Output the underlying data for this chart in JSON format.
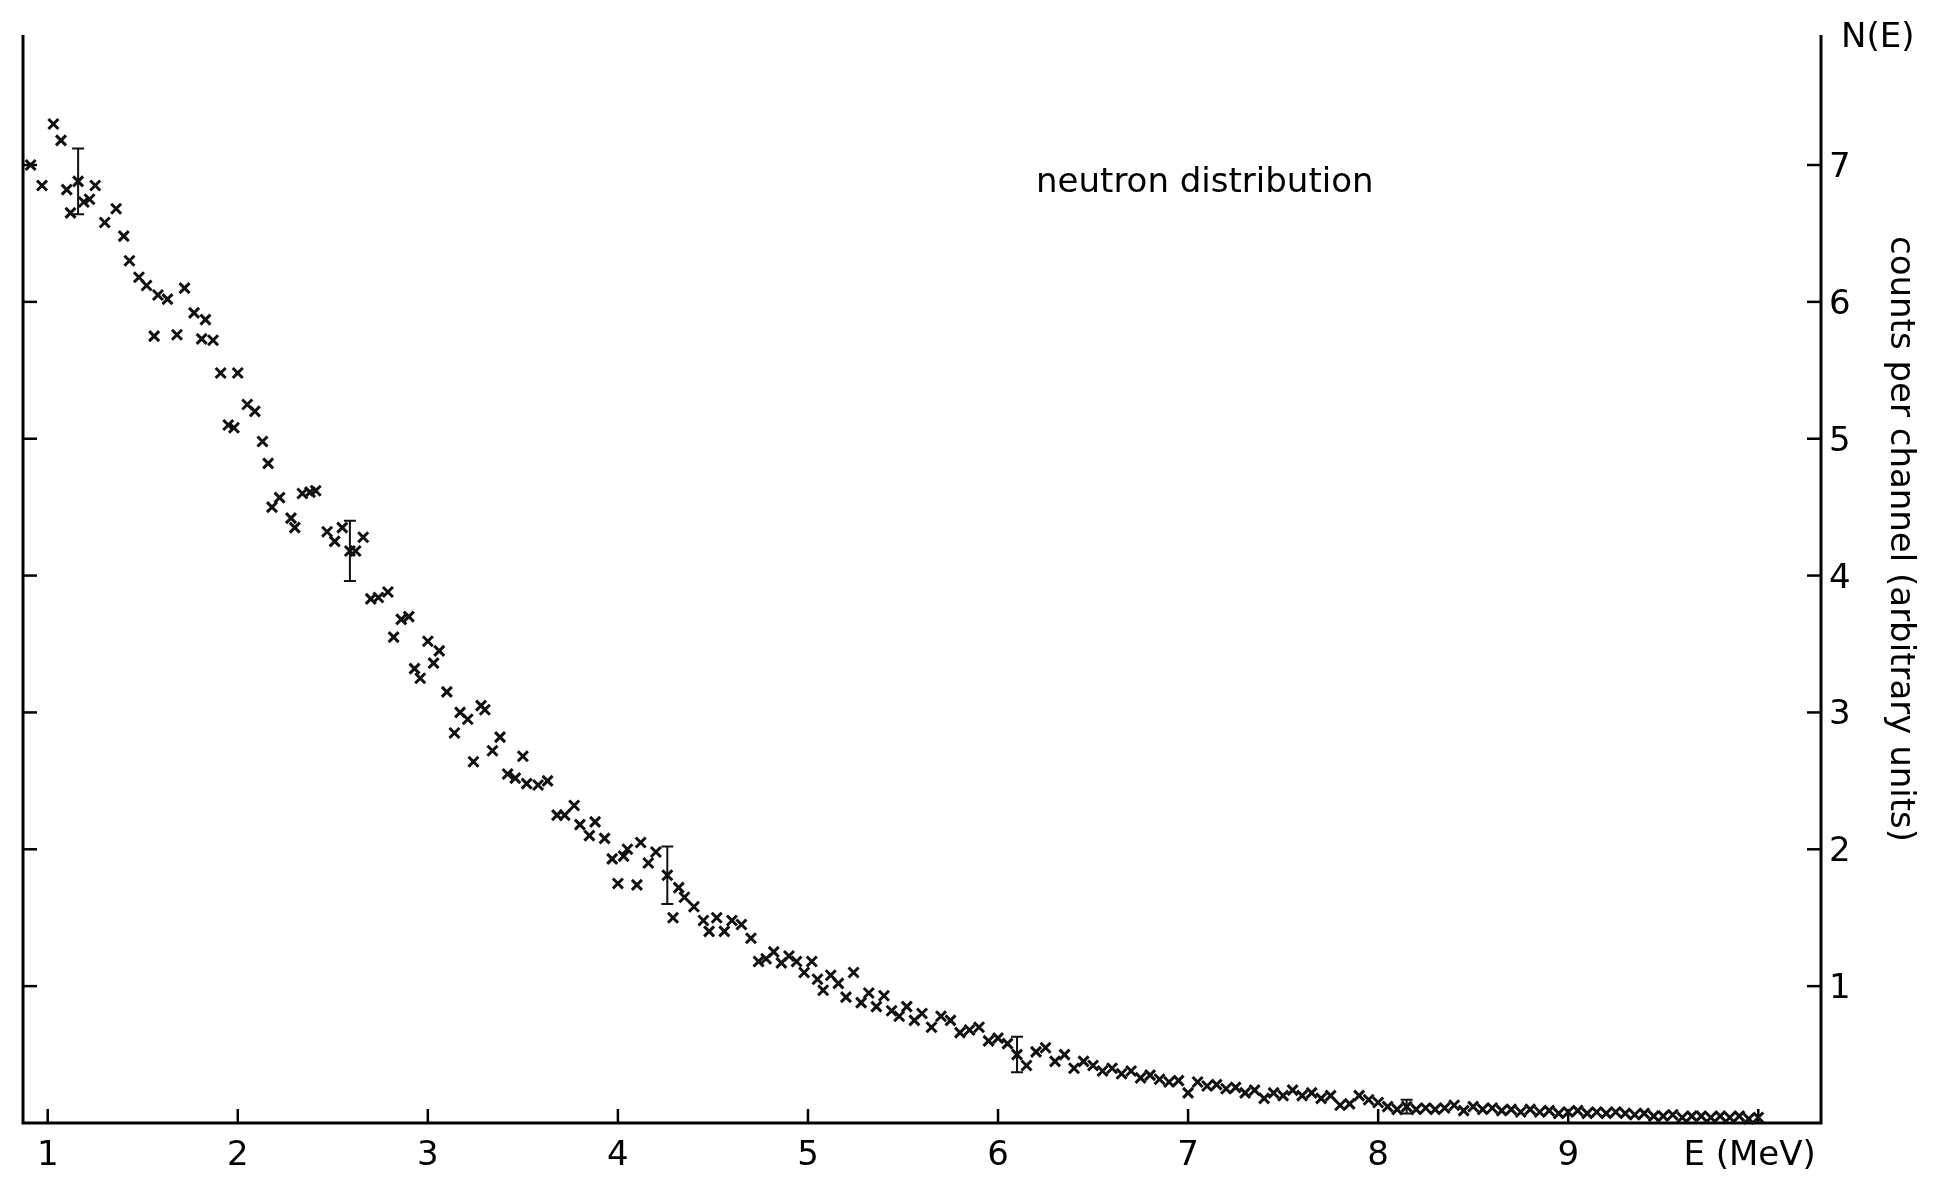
{
  "chart_data": {
    "type": "scatter",
    "xlabel": "E (MeV)",
    "ylabel": "counts per channel (arbitrary units)",
    "annotations": [
      "neutron distribution",
      "N(E)"
    ],
    "xlim": [
      0.87,
      10.33
    ],
    "ylim": [
      0,
      7.95
    ],
    "xticks": [
      1,
      2,
      3,
      4,
      5,
      6,
      7,
      8,
      9,
      {
        "value": 10,
        "label": null
      }
    ],
    "yticks": [
      1,
      2,
      3,
      4,
      5,
      6,
      7
    ],
    "marker": "cross",
    "series": [
      {
        "color": "#111111",
        "x": [
          0.91,
          0.97,
          1.03,
          1.07,
          1.1,
          1.12,
          1.19,
          1.22,
          1.25,
          1.3,
          1.36,
          1.4,
          1.43,
          1.48,
          1.52,
          1.56,
          1.58,
          1.63,
          1.68,
          1.72,
          1.77,
          1.81,
          1.83,
          1.87,
          1.91,
          1.95,
          1.98,
          2.0,
          2.05,
          2.09,
          2.13,
          2.16,
          2.18,
          2.22,
          2.28,
          2.3,
          2.34,
          2.38,
          2.41,
          2.47,
          2.51,
          2.55,
          2.62,
          2.66,
          2.7,
          2.74,
          2.79,
          2.82,
          2.86,
          2.9,
          2.93,
          2.96,
          3.0,
          3.03,
          3.06,
          3.1,
          3.14,
          3.17,
          3.21,
          3.24,
          3.28,
          3.3,
          3.34,
          3.38,
          3.42,
          3.46,
          3.5,
          3.52,
          3.58,
          3.63,
          3.68,
          3.72,
          3.77,
          3.8,
          3.85,
          3.88,
          3.93,
          3.97,
          4.0,
          4.03,
          4.05,
          4.1,
          4.12,
          4.16,
          4.2,
          4.29,
          4.32,
          4.35,
          4.4,
          4.45,
          4.48,
          4.52,
          4.56,
          4.6,
          4.65,
          4.7,
          4.74,
          4.78,
          4.82,
          4.86,
          4.9,
          4.94,
          4.98,
          5.02,
          5.05,
          5.08,
          5.12,
          5.16,
          5.2,
          5.24,
          5.28,
          5.32,
          5.36,
          5.4,
          5.44,
          5.48,
          5.52,
          5.56,
          5.6,
          5.65,
          5.7,
          5.75,
          5.8,
          5.85,
          5.9,
          5.95,
          6.0,
          6.05,
          6.15,
          6.2,
          6.25,
          6.3,
          6.35,
          6.4,
          6.45,
          6.5,
          6.55,
          6.6,
          6.65,
          6.7,
          6.75,
          6.8,
          6.85,
          6.9,
          6.95,
          7.0,
          7.05,
          7.1,
          7.15,
          7.2,
          7.25,
          7.3,
          7.35,
          7.4,
          7.45,
          7.5,
          7.55,
          7.6,
          7.65,
          7.7,
          7.75,
          7.8,
          7.85,
          7.9,
          7.95,
          8.0,
          8.05,
          8.1,
          8.2,
          8.25,
          8.3,
          8.35,
          8.4,
          8.45,
          8.5,
          8.55,
          8.6,
          8.65,
          8.7,
          8.75,
          8.8,
          8.85,
          8.9,
          8.95,
          9.0,
          9.05,
          9.1,
          9.15,
          9.2,
          9.25,
          9.3,
          9.35,
          9.4,
          9.45,
          9.5,
          9.55,
          9.6,
          9.65,
          9.7,
          9.75,
          9.8,
          9.85,
          9.9,
          9.95,
          10.0
        ],
        "values": [
          7.0,
          6.85,
          7.3,
          7.18,
          6.82,
          6.65,
          6.73,
          6.75,
          6.85,
          6.58,
          6.68,
          6.48,
          6.3,
          6.18,
          6.12,
          5.75,
          6.05,
          6.02,
          5.76,
          6.1,
          5.92,
          5.73,
          5.87,
          5.72,
          5.48,
          5.1,
          5.08,
          5.48,
          5.25,
          5.2,
          4.98,
          4.82,
          4.5,
          4.57,
          4.42,
          4.35,
          4.6,
          4.61,
          4.62,
          4.32,
          4.25,
          4.35,
          4.18,
          4.28,
          3.83,
          3.84,
          3.88,
          3.55,
          3.68,
          3.7,
          3.32,
          3.25,
          3.52,
          3.36,
          3.45,
          3.15,
          2.85,
          3.0,
          2.95,
          2.64,
          3.05,
          3.02,
          2.72,
          2.82,
          2.55,
          2.52,
          2.68,
          2.48,
          2.47,
          2.5,
          2.25,
          2.25,
          2.32,
          2.18,
          2.1,
          2.2,
          2.08,
          1.93,
          1.75,
          1.95,
          2.0,
          1.74,
          2.05,
          1.9,
          1.98,
          1.5,
          1.72,
          1.65,
          1.58,
          1.48,
          1.4,
          1.5,
          1.4,
          1.48,
          1.45,
          1.35,
          1.18,
          1.2,
          1.25,
          1.17,
          1.22,
          1.18,
          1.1,
          1.18,
          1.05,
          0.97,
          1.08,
          1.02,
          0.92,
          1.1,
          0.88,
          0.95,
          0.85,
          0.93,
          0.82,
          0.78,
          0.85,
          0.75,
          0.8,
          0.7,
          0.78,
          0.75,
          0.66,
          0.68,
          0.7,
          0.6,
          0.62,
          0.58,
          0.42,
          0.52,
          0.55,
          0.45,
          0.5,
          0.4,
          0.45,
          0.42,
          0.38,
          0.4,
          0.36,
          0.38,
          0.33,
          0.35,
          0.32,
          0.3,
          0.31,
          0.22,
          0.3,
          0.27,
          0.28,
          0.25,
          0.26,
          0.22,
          0.24,
          0.18,
          0.22,
          0.2,
          0.24,
          0.2,
          0.22,
          0.18,
          0.2,
          0.13,
          0.14,
          0.2,
          0.17,
          0.15,
          0.12,
          0.1,
          0.1,
          0.11,
          0.1,
          0.11,
          0.13,
          0.09,
          0.12,
          0.1,
          0.11,
          0.09,
          0.1,
          0.08,
          0.1,
          0.08,
          0.09,
          0.07,
          0.08,
          0.09,
          0.07,
          0.08,
          0.07,
          0.08,
          0.07,
          0.06,
          0.07,
          0.05,
          0.05,
          0.06,
          0.04,
          0.05,
          0.05,
          0.04,
          0.05,
          0.04,
          0.05,
          0.03,
          0.04
        ]
      },
      {
        "color": "#111111",
        "x": [
          1.16,
          2.59,
          4.26,
          6.1,
          8.15
        ],
        "values": [
          6.88,
          4.18,
          1.81,
          0.5,
          0.12
        ],
        "errors": [
          0.24,
          0.22,
          0.21,
          0.13,
          0.05
        ]
      }
    ]
  }
}
